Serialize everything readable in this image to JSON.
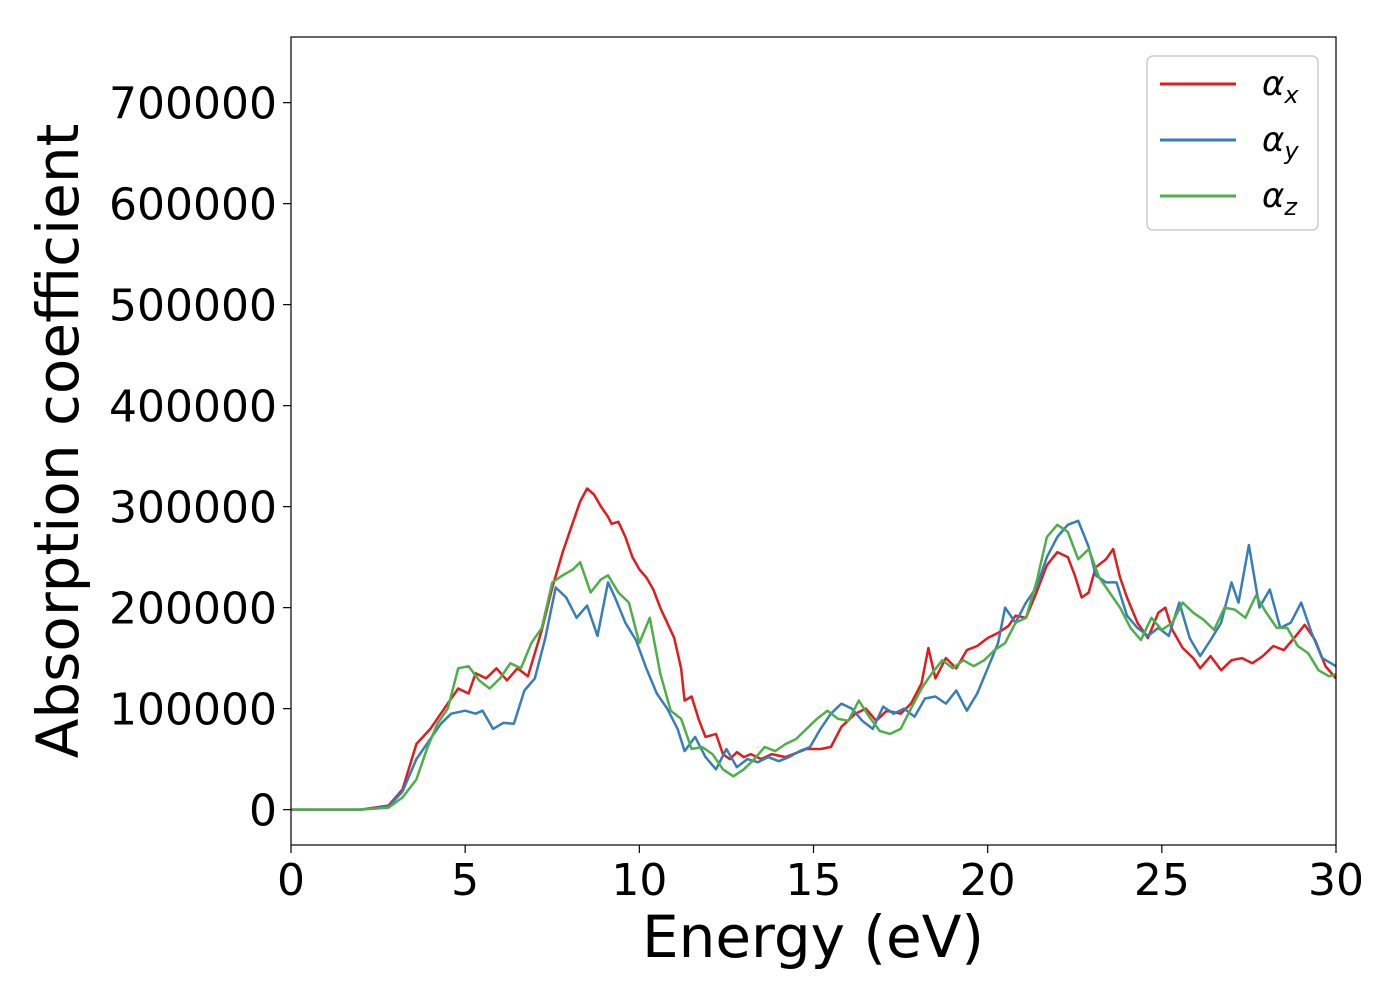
{
  "chart_data": {
    "type": "line",
    "title": "",
    "xlabel": "Energy (eV)",
    "ylabel": "Absorption coefficient",
    "xlim": [
      0,
      30
    ],
    "ylim": [
      -35000,
      765000
    ],
    "x_ticks": [
      0,
      5,
      10,
      15,
      20,
      25,
      30
    ],
    "y_ticks": [
      0,
      100000,
      200000,
      300000,
      400000,
      500000,
      600000,
      700000
    ],
    "grid": false,
    "legend_position": "top-right",
    "series": [
      {
        "name": "α",
        "subscript": "x",
        "color": "#e41a1c",
        "points": [
          [
            0,
            0
          ],
          [
            2,
            0
          ],
          [
            2.8,
            4000
          ],
          [
            3.2,
            20000
          ],
          [
            3.6,
            65000
          ],
          [
            4,
            80000
          ],
          [
            4.4,
            100000
          ],
          [
            4.8,
            120000
          ],
          [
            5.1,
            115000
          ],
          [
            5.3,
            135000
          ],
          [
            5.6,
            130000
          ],
          [
            5.9,
            140000
          ],
          [
            6.2,
            128000
          ],
          [
            6.5,
            140000
          ],
          [
            6.8,
            132000
          ],
          [
            7.2,
            178000
          ],
          [
            7.5,
            220000
          ],
          [
            7.8,
            255000
          ],
          [
            8.1,
            285000
          ],
          [
            8.3,
            305000
          ],
          [
            8.5,
            318000
          ],
          [
            8.7,
            312000
          ],
          [
            8.9,
            300000
          ],
          [
            9.1,
            290000
          ],
          [
            9.2,
            283000
          ],
          [
            9.4,
            285000
          ],
          [
            9.6,
            270000
          ],
          [
            9.8,
            250000
          ],
          [
            10,
            238000
          ],
          [
            10.2,
            230000
          ],
          [
            10.4,
            218000
          ],
          [
            10.6,
            200000
          ],
          [
            10.8,
            185000
          ],
          [
            11,
            170000
          ],
          [
            11.2,
            140000
          ],
          [
            11.3,
            108000
          ],
          [
            11.5,
            112000
          ],
          [
            11.7,
            90000
          ],
          [
            11.9,
            72000
          ],
          [
            12.2,
            75000
          ],
          [
            12.4,
            55000
          ],
          [
            12.6,
            50000
          ],
          [
            12.8,
            57000
          ],
          [
            13,
            52000
          ],
          [
            13.2,
            55000
          ],
          [
            13.5,
            50000
          ],
          [
            13.8,
            55000
          ],
          [
            14.2,
            52000
          ],
          [
            14.5,
            56000
          ],
          [
            14.8,
            60000
          ],
          [
            15.2,
            60000
          ],
          [
            15.5,
            62000
          ],
          [
            15.8,
            82000
          ],
          [
            16.2,
            95000
          ],
          [
            16.5,
            100000
          ],
          [
            16.8,
            88000
          ],
          [
            17.1,
            98000
          ],
          [
            17.5,
            95000
          ],
          [
            17.8,
            105000
          ],
          [
            18.1,
            125000
          ],
          [
            18.3,
            160000
          ],
          [
            18.5,
            130000
          ],
          [
            18.8,
            150000
          ],
          [
            19.1,
            140000
          ],
          [
            19.4,
            158000
          ],
          [
            19.7,
            162000
          ],
          [
            20,
            170000
          ],
          [
            20.3,
            175000
          ],
          [
            20.6,
            182000
          ],
          [
            20.8,
            192000
          ],
          [
            21.1,
            190000
          ],
          [
            21.4,
            215000
          ],
          [
            21.7,
            242000
          ],
          [
            22,
            255000
          ],
          [
            22.3,
            250000
          ],
          [
            22.5,
            232000
          ],
          [
            22.7,
            210000
          ],
          [
            22.9,
            215000
          ],
          [
            23.1,
            240000
          ],
          [
            23.4,
            248000
          ],
          [
            23.6,
            258000
          ],
          [
            23.8,
            230000
          ],
          [
            24,
            210000
          ],
          [
            24.3,
            185000
          ],
          [
            24.6,
            170000
          ],
          [
            24.9,
            195000
          ],
          [
            25.1,
            200000
          ],
          [
            25.3,
            178000
          ],
          [
            25.6,
            160000
          ],
          [
            25.9,
            150000
          ],
          [
            26.1,
            140000
          ],
          [
            26.4,
            152000
          ],
          [
            26.7,
            138000
          ],
          [
            27,
            148000
          ],
          [
            27.3,
            150000
          ],
          [
            27.6,
            145000
          ],
          [
            27.9,
            152000
          ],
          [
            28.2,
            162000
          ],
          [
            28.5,
            158000
          ],
          [
            28.8,
            170000
          ],
          [
            29.1,
            183000
          ],
          [
            29.4,
            168000
          ],
          [
            29.7,
            142000
          ],
          [
            30,
            130000
          ]
        ]
      },
      {
        "name": "α",
        "subscript": "y",
        "color": "#377eb8",
        "points": [
          [
            0,
            0
          ],
          [
            2,
            0
          ],
          [
            2.8,
            3000
          ],
          [
            3.2,
            18000
          ],
          [
            3.6,
            50000
          ],
          [
            4,
            70000
          ],
          [
            4.3,
            85000
          ],
          [
            4.6,
            95000
          ],
          [
            5,
            98000
          ],
          [
            5.3,
            95000
          ],
          [
            5.5,
            98000
          ],
          [
            5.8,
            80000
          ],
          [
            6.1,
            86000
          ],
          [
            6.4,
            85000
          ],
          [
            6.7,
            118000
          ],
          [
            7,
            130000
          ],
          [
            7.3,
            170000
          ],
          [
            7.6,
            220000
          ],
          [
            7.9,
            210000
          ],
          [
            8.2,
            190000
          ],
          [
            8.5,
            202000
          ],
          [
            8.8,
            172000
          ],
          [
            9.1,
            225000
          ],
          [
            9.3,
            210000
          ],
          [
            9.6,
            185000
          ],
          [
            9.9,
            168000
          ],
          [
            10.2,
            140000
          ],
          [
            10.5,
            115000
          ],
          [
            10.8,
            100000
          ],
          [
            11.1,
            80000
          ],
          [
            11.3,
            58000
          ],
          [
            11.6,
            72000
          ],
          [
            11.9,
            52000
          ],
          [
            12.2,
            40000
          ],
          [
            12.5,
            60000
          ],
          [
            12.8,
            42000
          ],
          [
            13.1,
            50000
          ],
          [
            13.4,
            47000
          ],
          [
            13.7,
            52000
          ],
          [
            14,
            48000
          ],
          [
            14.3,
            52000
          ],
          [
            14.6,
            58000
          ],
          [
            14.9,
            62000
          ],
          [
            15.2,
            80000
          ],
          [
            15.5,
            95000
          ],
          [
            15.8,
            105000
          ],
          [
            16.1,
            100000
          ],
          [
            16.4,
            88000
          ],
          [
            16.7,
            80000
          ],
          [
            17,
            102000
          ],
          [
            17.3,
            95000
          ],
          [
            17.6,
            100000
          ],
          [
            17.9,
            92000
          ],
          [
            18.2,
            110000
          ],
          [
            18.5,
            112000
          ],
          [
            18.8,
            105000
          ],
          [
            19.1,
            118000
          ],
          [
            19.4,
            98000
          ],
          [
            19.7,
            115000
          ],
          [
            20,
            140000
          ],
          [
            20.3,
            165000
          ],
          [
            20.5,
            200000
          ],
          [
            20.8,
            185000
          ],
          [
            21.1,
            205000
          ],
          [
            21.4,
            220000
          ],
          [
            21.7,
            250000
          ],
          [
            22,
            270000
          ],
          [
            22.3,
            282000
          ],
          [
            22.6,
            286000
          ],
          [
            22.9,
            260000
          ],
          [
            23.1,
            232000
          ],
          [
            23.4,
            225000
          ],
          [
            23.7,
            225000
          ],
          [
            24,
            192000
          ],
          [
            24.3,
            180000
          ],
          [
            24.6,
            172000
          ],
          [
            24.9,
            180000
          ],
          [
            25.2,
            172000
          ],
          [
            25.5,
            205000
          ],
          [
            25.8,
            170000
          ],
          [
            26.1,
            152000
          ],
          [
            26.4,
            168000
          ],
          [
            26.7,
            185000
          ],
          [
            27,
            225000
          ],
          [
            27.2,
            205000
          ],
          [
            27.5,
            262000
          ],
          [
            27.8,
            200000
          ],
          [
            28.1,
            218000
          ],
          [
            28.4,
            180000
          ],
          [
            28.7,
            185000
          ],
          [
            29,
            205000
          ],
          [
            29.3,
            175000
          ],
          [
            29.6,
            150000
          ],
          [
            30,
            142000
          ]
        ]
      },
      {
        "name": "α",
        "subscript": "z",
        "color": "#4daf4a",
        "points": [
          [
            0,
            0
          ],
          [
            2,
            0
          ],
          [
            2.8,
            2000
          ],
          [
            3.2,
            12000
          ],
          [
            3.6,
            30000
          ],
          [
            3.9,
            60000
          ],
          [
            4.2,
            85000
          ],
          [
            4.5,
            100000
          ],
          [
            4.8,
            140000
          ],
          [
            5.1,
            142000
          ],
          [
            5.4,
            128000
          ],
          [
            5.7,
            120000
          ],
          [
            6,
            130000
          ],
          [
            6.3,
            145000
          ],
          [
            6.6,
            140000
          ],
          [
            6.9,
            165000
          ],
          [
            7.2,
            180000
          ],
          [
            7.5,
            225000
          ],
          [
            7.8,
            232000
          ],
          [
            8.1,
            238000
          ],
          [
            8.3,
            245000
          ],
          [
            8.6,
            215000
          ],
          [
            8.9,
            228000
          ],
          [
            9.1,
            232000
          ],
          [
            9.4,
            215000
          ],
          [
            9.7,
            205000
          ],
          [
            10,
            165000
          ],
          [
            10.3,
            190000
          ],
          [
            10.6,
            135000
          ],
          [
            10.9,
            98000
          ],
          [
            11.2,
            90000
          ],
          [
            11.5,
            60000
          ],
          [
            11.8,
            62000
          ],
          [
            12.1,
            55000
          ],
          [
            12.4,
            40000
          ],
          [
            12.7,
            33000
          ],
          [
            13,
            40000
          ],
          [
            13.3,
            50000
          ],
          [
            13.6,
            62000
          ],
          [
            13.9,
            58000
          ],
          [
            14.2,
            65000
          ],
          [
            14.5,
            70000
          ],
          [
            14.8,
            80000
          ],
          [
            15.1,
            90000
          ],
          [
            15.4,
            98000
          ],
          [
            15.7,
            90000
          ],
          [
            16,
            88000
          ],
          [
            16.3,
            108000
          ],
          [
            16.6,
            92000
          ],
          [
            16.9,
            78000
          ],
          [
            17.2,
            75000
          ],
          [
            17.5,
            80000
          ],
          [
            17.8,
            100000
          ],
          [
            18.1,
            120000
          ],
          [
            18.4,
            135000
          ],
          [
            18.7,
            148000
          ],
          [
            19,
            140000
          ],
          [
            19.3,
            148000
          ],
          [
            19.6,
            142000
          ],
          [
            19.9,
            148000
          ],
          [
            20.2,
            158000
          ],
          [
            20.5,
            165000
          ],
          [
            20.8,
            185000
          ],
          [
            21.1,
            190000
          ],
          [
            21.4,
            225000
          ],
          [
            21.7,
            270000
          ],
          [
            22,
            282000
          ],
          [
            22.3,
            275000
          ],
          [
            22.6,
            248000
          ],
          [
            22.9,
            258000
          ],
          [
            23.2,
            230000
          ],
          [
            23.5,
            215000
          ],
          [
            23.8,
            200000
          ],
          [
            24.1,
            180000
          ],
          [
            24.4,
            168000
          ],
          [
            24.7,
            190000
          ],
          [
            25,
            178000
          ],
          [
            25.3,
            185000
          ],
          [
            25.6,
            205000
          ],
          [
            25.9,
            195000
          ],
          [
            26.2,
            188000
          ],
          [
            26.5,
            178000
          ],
          [
            26.8,
            200000
          ],
          [
            27.1,
            198000
          ],
          [
            27.4,
            190000
          ],
          [
            27.7,
            212000
          ],
          [
            28,
            195000
          ],
          [
            28.3,
            180000
          ],
          [
            28.6,
            180000
          ],
          [
            28.9,
            162000
          ],
          [
            29.2,
            155000
          ],
          [
            29.5,
            138000
          ],
          [
            29.8,
            132000
          ],
          [
            30,
            134000
          ]
        ]
      }
    ]
  }
}
